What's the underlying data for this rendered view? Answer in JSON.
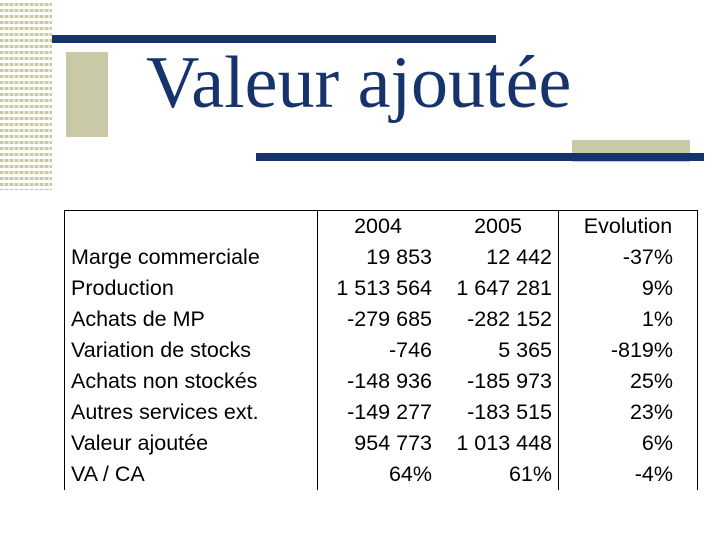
{
  "slide": {
    "title": "Valeur ajoutée"
  },
  "table": {
    "headers": [
      "",
      "2004",
      "2005",
      "Evolution"
    ],
    "rows": [
      [
        "Marge commerciale",
        "19 853",
        "12 442",
        "-37%"
      ],
      [
        "Production",
        "1 513 564",
        "1 647 281",
        "9%"
      ],
      [
        "Achats de MP",
        "-279 685",
        "-282 152",
        "1%"
      ],
      [
        "Variation de stocks",
        "-746",
        "5 365",
        "-819%"
      ],
      [
        "Achats non stockés",
        "-148 936",
        "-185 973",
        "25%"
      ],
      [
        "Autres services ext.",
        "-149 277",
        "-183 515",
        "23%"
      ],
      [
        "Valeur ajoutée",
        "954 773",
        "1 013 448",
        "6%"
      ],
      [
        "VA / CA",
        "64%",
        "61%",
        "-4%"
      ]
    ]
  },
  "colors": {
    "title": "#17336b",
    "accent_bar": "#17336b",
    "accent_tan": "#c9c9a6"
  }
}
